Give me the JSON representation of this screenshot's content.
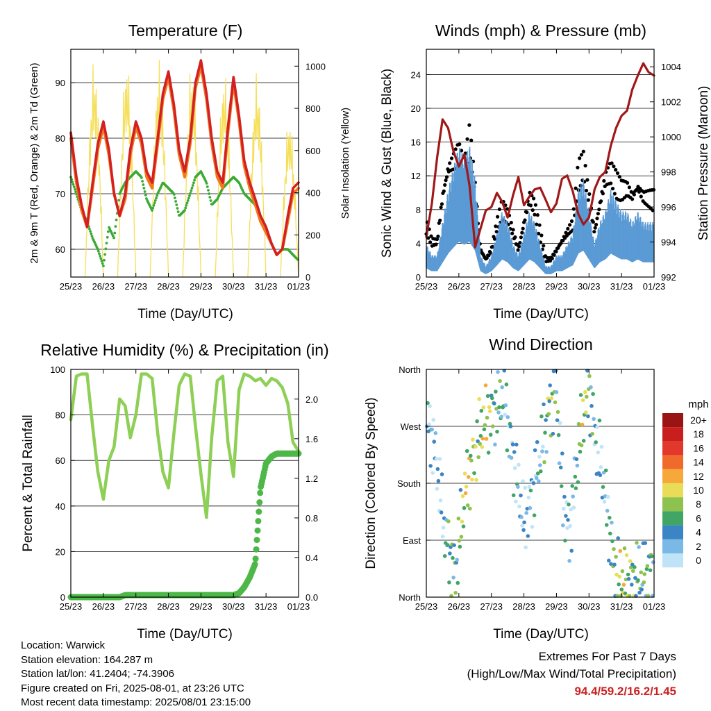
{
  "x_ticks": [
    "25/23",
    "26/23",
    "27/23",
    "28/23",
    "29/23",
    "30/23",
    "31/23",
    "01/23"
  ],
  "x_label": "Time (Day/UTC)",
  "colors": {
    "t2m": "#d42020",
    "t9m": "#f07820",
    "td": "#3aaa35",
    "solar": "#f5df5a",
    "wind": "#5a9ad5",
    "gust": "#000000",
    "pressure": "#a01818",
    "rh": "#8ecf55",
    "precip": "#4db848",
    "extreme": "#cc2222"
  },
  "panels": {
    "temperature": {
      "title": "Temperature (F)",
      "ylabel_left": "2m & 9m T (Red, Orange) & 2m Td (Green)",
      "ylabel_right": "Solar Insolation (Yellow)",
      "left_ticks": [
        "60",
        "70",
        "80",
        "90"
      ],
      "right_ticks": [
        "0",
        "200",
        "400",
        "600",
        "800",
        "1000"
      ]
    },
    "winds": {
      "title": "Winds (mph) & Pressure (mb)",
      "ylabel_left": "Sonic Wind & Gust (Blue, Black)",
      "ylabel_right": "Station Pressure (Maroon)",
      "left_ticks": [
        "0",
        "4",
        "8",
        "12",
        "16",
        "20",
        "24"
      ],
      "right_ticks": [
        "992",
        "994",
        "996",
        "998",
        "1000",
        "1002",
        "1004"
      ]
    },
    "humidity": {
      "title": "Relative Humidity (%) & Precipitation (in)",
      "ylabel_left": "Percent & Total Rainfall",
      "left_ticks": [
        "0",
        "20",
        "40",
        "60",
        "80",
        "100"
      ],
      "right_ticks": [
        "0.0",
        "0.4",
        "0.8",
        "1.2",
        "1.6",
        "2.0"
      ]
    },
    "direction": {
      "title": "Wind Direction",
      "ylabel_left": "Direction (Colored By Speed)",
      "left_ticks": [
        "North",
        "East",
        "South",
        "West",
        "North"
      ],
      "legend_title": "mph",
      "legend_labels": [
        "20+",
        "18",
        "16",
        "14",
        "12",
        "10",
        "8",
        "6",
        "4",
        "2",
        "0"
      ],
      "legend_colors": [
        "#9b1414",
        "#c81e1e",
        "#e2372b",
        "#ef6a2b",
        "#f6a83a",
        "#e9dd58",
        "#8cc24d",
        "#41a566",
        "#3c85c4",
        "#7ab8e6",
        "#bfe4f8"
      ]
    }
  },
  "chart_data": [
    {
      "type": "line",
      "title": "Temperature (F)",
      "xlabel": "Time (Day/UTC)",
      "ylabel": "2m & 9m T (Red, Orange) & 2m Td (Green)",
      "y2label": "Solar Insolation (Yellow)",
      "x_days": [
        0,
        0.17,
        0.33,
        0.5,
        0.67,
        0.83,
        1.0,
        1.17,
        1.33,
        1.5,
        1.67,
        1.83,
        2.0,
        2.17,
        2.33,
        2.5,
        2.67,
        2.83,
        3.0,
        3.17,
        3.33,
        3.5,
        3.67,
        3.83,
        4.0,
        4.17,
        4.33,
        4.5,
        4.67,
        4.83,
        5.0,
        5.17,
        5.33,
        5.5,
        5.67,
        5.83,
        6.0,
        6.17,
        6.33,
        6.5,
        6.67,
        6.83,
        7.0
      ],
      "ylim": [
        55,
        96
      ],
      "y2lim": [
        0,
        1080
      ],
      "series": [
        {
          "name": "2m T",
          "axis": "left",
          "values": [
            81,
            73,
            68,
            64,
            72,
            79,
            83,
            78,
            70,
            66,
            70,
            78,
            83,
            80,
            74,
            72,
            80,
            88,
            92,
            86,
            78,
            74,
            80,
            90,
            94,
            88,
            80,
            74,
            72,
            82,
            91,
            84,
            76,
            72,
            69,
            66,
            64,
            61,
            59,
            60,
            66,
            71,
            72
          ]
        },
        {
          "name": "9m T",
          "axis": "left",
          "values": [
            80,
            72,
            67,
            64,
            71,
            78,
            82,
            77,
            70,
            66,
            69,
            77,
            82,
            79,
            73,
            71,
            79,
            87,
            91,
            85,
            77,
            73,
            79,
            89,
            93,
            87,
            79,
            73,
            71,
            81,
            90,
            83,
            75,
            71,
            68,
            65,
            63,
            61,
            59,
            60,
            65,
            70,
            71
          ]
        },
        {
          "name": "2m Td",
          "axis": "left",
          "values": [
            73,
            70,
            67,
            65,
            62,
            60,
            57,
            64,
            62,
            70,
            72,
            73,
            74,
            73,
            69,
            67,
            70,
            72,
            71,
            70,
            66,
            67,
            70,
            73,
            74,
            72,
            68,
            69,
            71,
            72,
            73,
            72,
            70,
            69,
            68,
            66,
            64,
            61,
            59,
            60,
            60,
            59,
            58
          ]
        },
        {
          "name": "Solar Insolation",
          "axis": "right",
          "peak_days": [
            0.72,
            1.72,
            2.72,
            3.72,
            4.72,
            5.72,
            6.72
          ],
          "peak_values": [
            1040,
            1060,
            1050,
            1030,
            1000,
            980,
            780
          ]
        }
      ]
    },
    {
      "type": "line",
      "title": "Winds (mph) & Pressure (mb)",
      "xlabel": "Time (Day/UTC)",
      "ylabel": "Sonic Wind & Gust (Blue, Black)",
      "y2label": "Station Pressure (Maroon)",
      "x_days": [
        0,
        0.17,
        0.33,
        0.5,
        0.67,
        0.83,
        1.0,
        1.17,
        1.33,
        1.5,
        1.67,
        1.83,
        2.0,
        2.17,
        2.33,
        2.5,
        2.67,
        2.83,
        3.0,
        3.17,
        3.33,
        3.5,
        3.67,
        3.83,
        4.0,
        4.17,
        4.33,
        4.5,
        4.67,
        4.83,
        5.0,
        5.17,
        5.33,
        5.5,
        5.67,
        5.83,
        6.0,
        6.17,
        6.33,
        6.5,
        6.67,
        6.83,
        7.0
      ],
      "ylim": [
        0,
        27
      ],
      "y2lim": [
        992,
        1005
      ],
      "series": [
        {
          "name": "Wind",
          "axis": "left",
          "values": [
            3,
            2,
            2,
            5,
            8,
            10,
            12,
            11,
            12,
            9,
            2,
            1,
            2,
            4,
            6,
            5,
            3,
            2,
            4,
            6,
            5,
            3,
            1,
            1,
            2,
            2,
            3,
            4,
            8,
            9,
            6,
            3,
            5,
            6,
            8,
            7,
            6,
            6,
            5,
            6,
            5,
            5,
            5
          ]
        },
        {
          "name": "Gust",
          "axis": "left",
          "values": [
            6,
            4,
            4,
            9,
            12,
            13,
            14,
            12,
            16,
            10,
            3,
            2,
            3,
            6,
            8,
            7,
            5,
            3,
            6,
            9,
            8,
            5,
            2,
            2,
            3,
            4,
            5,
            6,
            12,
            13,
            9,
            5,
            8,
            11,
            12,
            11,
            10,
            10,
            9,
            10,
            9,
            9,
            9
          ]
        },
        {
          "name": "Station Pressure",
          "axis": "right",
          "values": [
            994.3,
            996.2,
            998.8,
            1001.0,
            1000.5,
            999.2,
            998.3,
            999.0,
            997.2,
            993.7,
            994.8,
            995.8,
            996.0,
            996.8,
            996.3,
            995.4,
            996.7,
            997.7,
            996.1,
            996.6,
            997.0,
            997.1,
            996.4,
            995.7,
            996.2,
            997.6,
            997.8,
            996.9,
            995.6,
            995.0,
            995.4,
            997.0,
            997.7,
            998.0,
            999.5,
            1000.5,
            1001.2,
            1001.5,
            1002.7,
            1003.5,
            1004.2,
            1003.7,
            1003.5
          ]
        }
      ]
    },
    {
      "type": "line",
      "title": "Relative Humidity (%) & Precipitation (in)",
      "xlabel": "Time (Day/UTC)",
      "ylabel": "Percent & Total Rainfall",
      "x_days": [
        0,
        0.17,
        0.33,
        0.5,
        0.67,
        0.83,
        1.0,
        1.17,
        1.33,
        1.5,
        1.67,
        1.83,
        2.0,
        2.17,
        2.33,
        2.5,
        2.67,
        2.83,
        3.0,
        3.17,
        3.33,
        3.5,
        3.67,
        3.83,
        4.0,
        4.17,
        4.33,
        4.5,
        4.67,
        4.83,
        5.0,
        5.17,
        5.33,
        5.5,
        5.67,
        5.83,
        6.0,
        6.17,
        6.33,
        6.5,
        6.67,
        6.83,
        7.0
      ],
      "ylim": [
        0,
        100
      ],
      "y2lim": [
        0,
        2.3
      ],
      "series": [
        {
          "name": "Relative Humidity",
          "axis": "left",
          "values": [
            78,
            97,
            98,
            98,
            75,
            55,
            43,
            60,
            66,
            87,
            84,
            70,
            80,
            98,
            98,
            96,
            72,
            55,
            48,
            72,
            93,
            98,
            97,
            75,
            54,
            35,
            70,
            95,
            97,
            68,
            53,
            91,
            98,
            97,
            95,
            96,
            93,
            96,
            95,
            92,
            85,
            68,
            64
          ]
        },
        {
          "name": "Total Precipitation",
          "axis": "right",
          "values": [
            0,
            0,
            0,
            0,
            0,
            0,
            0,
            0,
            0,
            0,
            0.02,
            0.02,
            0.02,
            0.02,
            0.02,
            0.02,
            0.02,
            0.02,
            0.02,
            0.02,
            0.02,
            0.02,
            0.02,
            0.02,
            0.02,
            0.02,
            0.02,
            0.02,
            0.02,
            0.02,
            0.02,
            0.04,
            0.1,
            0.2,
            0.34,
            1.1,
            1.35,
            1.42,
            1.45,
            1.45,
            1.45,
            1.45,
            1.45
          ]
        }
      ]
    },
    {
      "type": "scatter",
      "title": "Wind Direction",
      "xlabel": "Time (Day/UTC)",
      "ylabel": "Direction (Colored By Speed)",
      "ylim": [
        0,
        360
      ],
      "x_days": [
        0.05,
        0.2,
        0.35,
        0.5,
        0.6,
        0.75,
        0.9,
        1.05,
        1.2,
        1.35,
        1.5,
        1.65,
        1.8,
        2.0,
        2.2,
        2.4,
        2.6,
        2.8,
        3.0,
        3.2,
        3.4,
        3.6,
        3.8,
        4.0,
        4.2,
        4.4,
        4.6,
        4.8,
        5.0,
        5.2,
        5.4,
        5.6,
        5.8,
        6.0,
        6.2,
        6.4,
        6.6,
        6.8,
        6.95
      ],
      "series": [
        {
          "name": "Direction",
          "values": [
            270,
            250,
            200,
            130,
            90,
            60,
            40,
            110,
            170,
            200,
            230,
            260,
            280,
            290,
            300,
            320,
            240,
            180,
            120,
            150,
            200,
            250,
            300,
            330,
            150,
            100,
            200,
            280,
            330,
            250,
            200,
            120,
            40,
            30,
            25,
            30,
            35,
            40,
            45
          ]
        },
        {
          "name": "Speed",
          "values": [
            3,
            2,
            1,
            2,
            4,
            6,
            5,
            7,
            10,
            9,
            8,
            7,
            10,
            6,
            5,
            4,
            3,
            2,
            2,
            2,
            3,
            4,
            7,
            5,
            3,
            2,
            4,
            9,
            6,
            3,
            2,
            4,
            6,
            9,
            8,
            6,
            5,
            6,
            5
          ]
        }
      ]
    }
  ],
  "info": {
    "location": "Location: Warwick",
    "elevation": "Station elevation: 164.287 m",
    "latlon": "Station lat/lon: 41.2404; -74.3906",
    "created": "Figure created on Fri, 2025-08-01, at 23:26 UTC",
    "recent": "Most recent data timestamp: 2025/08/01 23:15:00"
  },
  "extremes": {
    "title": "Extremes For Past 7 Days",
    "subtitle": "(High/Low/Max Wind/Total Precipitation)",
    "values": "94.4/59.2/16.2/1.45"
  }
}
